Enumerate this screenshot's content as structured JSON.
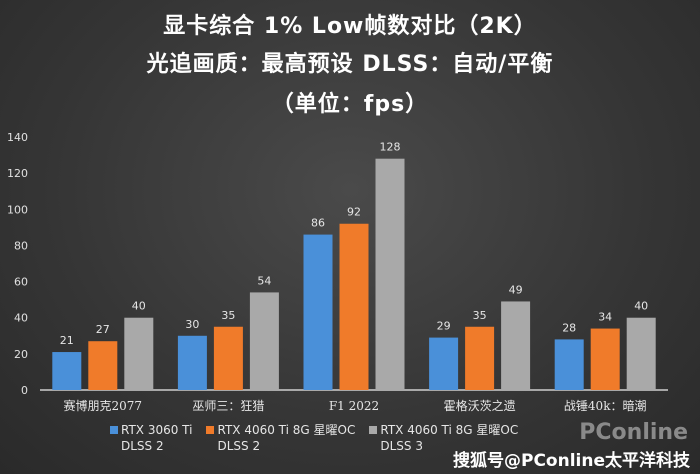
{
  "chart_data": {
    "type": "bar",
    "title": [
      "显卡综合 1% Low帧数对比（2K）",
      "光追画质：最高预设    DLSS：自动/平衡",
      "（单位：fps）"
    ],
    "categories": [
      "赛博朋克2077",
      "巫师三：狂猎",
      "F1 2022",
      "霍格沃茨之遗",
      "战锤40k：暗潮"
    ],
    "series": [
      {
        "name": "RTX 3060 Ti DLSS 2",
        "values": [
          21,
          30,
          86,
          29,
          28
        ],
        "color": "#4a90d9"
      },
      {
        "name": "RTX 4060 Ti 8G 星曜OC DLSS 2",
        "values": [
          27,
          35,
          92,
          35,
          34
        ],
        "color": "#f07b2a"
      },
      {
        "name": "RTX 4060 Ti 8G 星曜OC DLSS 3",
        "values": [
          40,
          54,
          128,
          49,
          40
        ],
        "color": "#a9a9a9"
      }
    ],
    "legend": [
      {
        "line1": "RTX 3060 Ti",
        "line2": "DLSS 2"
      },
      {
        "line1": "RTX 4060 Ti 8G 星曜OC",
        "line2": "DLSS 2"
      },
      {
        "line1": "RTX 4060 Ti 8G 星曜OC",
        "line2": "DLSS 3"
      }
    ],
    "ylim": [
      0,
      140
    ],
    "yticks": [
      0,
      20,
      40,
      60,
      80,
      100,
      120,
      140
    ],
    "grid": false,
    "legend_placement": "bottom"
  },
  "watermark": "搜狐号@PConline太平洋科技",
  "watermark_logo": "PConline"
}
